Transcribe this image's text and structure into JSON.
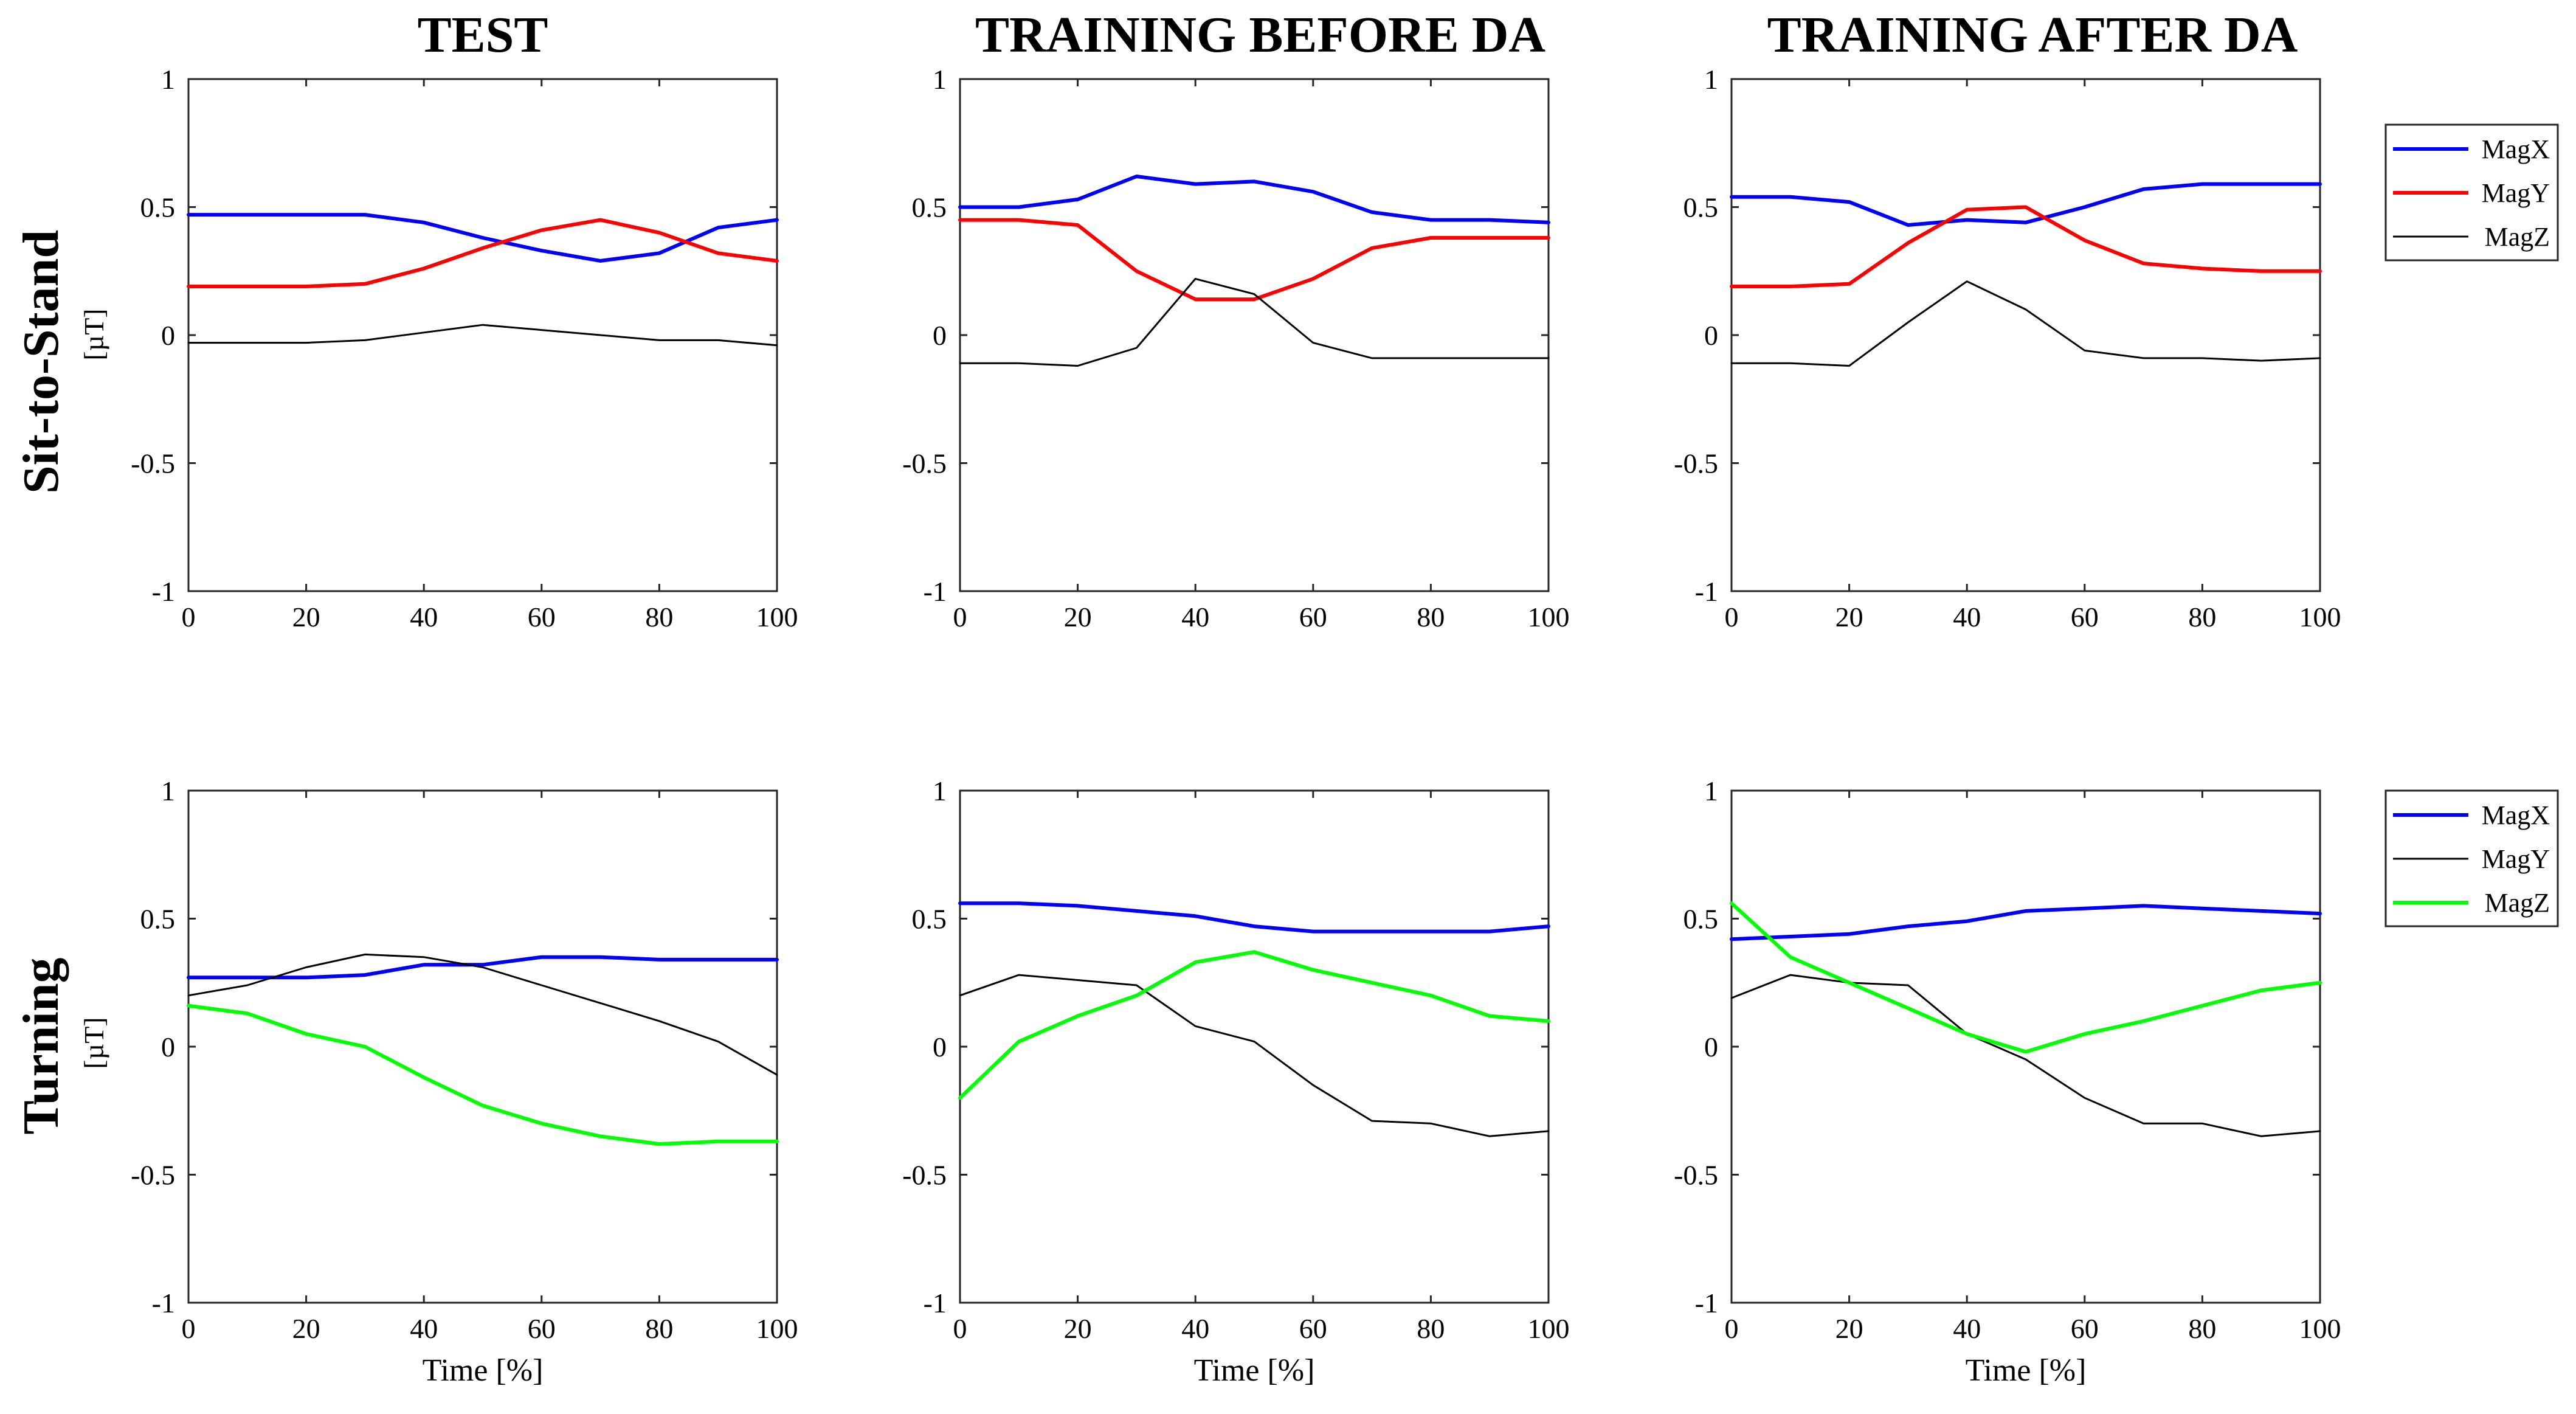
{
  "figure": {
    "column_titles": [
      "TEST",
      "TRAINING BEFORE DA",
      "TRAINING AFTER DA"
    ],
    "row_titles": [
      "Sit-to-Stand",
      "Turning"
    ],
    "unit_label": "[µT]",
    "xlabel": "Time [%]"
  },
  "colors": {
    "blue": "#0000FF",
    "red": "#FF0000",
    "black": "#000000",
    "green": "#00FF00"
  },
  "legends": [
    {
      "entries": [
        {
          "label": "MagX",
          "color": "#0000FF"
        },
        {
          "label": "MagY",
          "color": "#FF0000"
        },
        {
          "label": "MagZ",
          "color": "#000000"
        }
      ]
    },
    {
      "entries": [
        {
          "label": "MagX",
          "color": "#0000FF"
        },
        {
          "label": "MagY",
          "color": "#000000"
        },
        {
          "label": "MagZ",
          "color": "#00FF00"
        }
      ]
    }
  ],
  "chart_data": [
    {
      "type": "line",
      "row": 0,
      "col": 0,
      "x": [
        0,
        10,
        20,
        30,
        40,
        50,
        60,
        70,
        80,
        90,
        100
      ],
      "xlim": [
        0,
        100
      ],
      "ylim": [
        -1,
        1
      ],
      "xticks": [
        "0",
        "20",
        "40",
        "60",
        "80",
        "100"
      ],
      "yticks": [
        "-1",
        "-0.5",
        "0",
        "0.5",
        "1"
      ],
      "series": [
        {
          "name": "MagX",
          "color": "#0000FF",
          "values": [
            0.47,
            0.47,
            0.47,
            0.47,
            0.44,
            0.38,
            0.33,
            0.29,
            0.32,
            0.42,
            0.45
          ]
        },
        {
          "name": "MagY",
          "color": "#FF0000",
          "values": [
            0.19,
            0.19,
            0.19,
            0.2,
            0.26,
            0.34,
            0.41,
            0.45,
            0.4,
            0.32,
            0.29
          ]
        },
        {
          "name": "MagZ",
          "color": "#000000",
          "values": [
            -0.03,
            -0.03,
            -0.03,
            -0.02,
            0.01,
            0.04,
            0.02,
            0.0,
            -0.02,
            -0.02,
            -0.04
          ]
        }
      ]
    },
    {
      "type": "line",
      "row": 0,
      "col": 1,
      "x": [
        0,
        10,
        20,
        30,
        40,
        50,
        60,
        70,
        80,
        90,
        100
      ],
      "xlim": [
        0,
        100
      ],
      "ylim": [
        -1,
        1
      ],
      "xticks": [
        "0",
        "20",
        "40",
        "60",
        "80",
        "100"
      ],
      "yticks": [
        "-1",
        "-0.5",
        "0",
        "0.5",
        "1"
      ],
      "series": [
        {
          "name": "MagX",
          "color": "#0000FF",
          "values": [
            0.5,
            0.5,
            0.53,
            0.62,
            0.59,
            0.6,
            0.56,
            0.48,
            0.45,
            0.45,
            0.44
          ]
        },
        {
          "name": "MagY",
          "color": "#FF0000",
          "values": [
            0.45,
            0.45,
            0.43,
            0.25,
            0.14,
            0.14,
            0.22,
            0.34,
            0.38,
            0.38,
            0.38
          ]
        },
        {
          "name": "MagZ",
          "color": "#000000",
          "values": [
            -0.11,
            -0.11,
            -0.12,
            -0.05,
            0.22,
            0.16,
            -0.03,
            -0.09,
            -0.09,
            -0.09,
            -0.09
          ]
        }
      ]
    },
    {
      "type": "line",
      "row": 0,
      "col": 2,
      "x": [
        0,
        10,
        20,
        30,
        40,
        50,
        60,
        70,
        80,
        90,
        100
      ],
      "xlim": [
        0,
        100
      ],
      "ylim": [
        -1,
        1
      ],
      "xticks": [
        "0",
        "20",
        "40",
        "60",
        "80",
        "100"
      ],
      "yticks": [
        "-1",
        "-0.5",
        "0",
        "0.5",
        "1"
      ],
      "series": [
        {
          "name": "MagX",
          "color": "#0000FF",
          "values": [
            0.54,
            0.54,
            0.52,
            0.43,
            0.45,
            0.44,
            0.5,
            0.57,
            0.59,
            0.59,
            0.59
          ]
        },
        {
          "name": "MagY",
          "color": "#FF0000",
          "values": [
            0.19,
            0.19,
            0.2,
            0.36,
            0.49,
            0.5,
            0.37,
            0.28,
            0.26,
            0.25,
            0.25
          ]
        },
        {
          "name": "MagZ",
          "color": "#000000",
          "values": [
            -0.11,
            -0.11,
            -0.12,
            0.05,
            0.21,
            0.1,
            -0.06,
            -0.09,
            -0.09,
            -0.1,
            -0.09
          ]
        }
      ]
    },
    {
      "type": "line",
      "row": 1,
      "col": 0,
      "x": [
        0,
        10,
        20,
        30,
        40,
        50,
        60,
        70,
        80,
        90,
        100
      ],
      "xlim": [
        0,
        100
      ],
      "ylim": [
        -1,
        1
      ],
      "xticks": [
        "0",
        "20",
        "40",
        "60",
        "80",
        "100"
      ],
      "yticks": [
        "-1",
        "-0.5",
        "0",
        "0.5",
        "1"
      ],
      "xlabel": "Time [%]",
      "series": [
        {
          "name": "MagX",
          "color": "#0000FF",
          "values": [
            0.27,
            0.27,
            0.27,
            0.28,
            0.32,
            0.32,
            0.35,
            0.35,
            0.34,
            0.34,
            0.34
          ]
        },
        {
          "name": "MagY",
          "color": "#000000",
          "values": [
            0.2,
            0.24,
            0.31,
            0.36,
            0.35,
            0.31,
            0.24,
            0.17,
            0.1,
            0.02,
            -0.11
          ]
        },
        {
          "name": "MagZ",
          "color": "#00FF00",
          "values": [
            0.16,
            0.13,
            0.05,
            0.0,
            -0.12,
            -0.23,
            -0.3,
            -0.35,
            -0.38,
            -0.37,
            -0.37
          ]
        }
      ]
    },
    {
      "type": "line",
      "row": 1,
      "col": 1,
      "x": [
        0,
        10,
        20,
        30,
        40,
        50,
        60,
        70,
        80,
        90,
        100
      ],
      "xlim": [
        0,
        100
      ],
      "ylim": [
        -1,
        1
      ],
      "xticks": [
        "0",
        "20",
        "40",
        "60",
        "80",
        "100"
      ],
      "yticks": [
        "-1",
        "-0.5",
        "0",
        "0.5",
        "1"
      ],
      "xlabel": "Time [%]",
      "series": [
        {
          "name": "MagX",
          "color": "#0000FF",
          "values": [
            0.56,
            0.56,
            0.55,
            0.53,
            0.51,
            0.47,
            0.45,
            0.45,
            0.45,
            0.45,
            0.47
          ]
        },
        {
          "name": "MagY",
          "color": "#000000",
          "values": [
            0.2,
            0.28,
            0.26,
            0.24,
            0.08,
            0.02,
            -0.15,
            -0.29,
            -0.3,
            -0.35,
            -0.33
          ]
        },
        {
          "name": "MagZ",
          "color": "#00FF00",
          "values": [
            -0.2,
            0.02,
            0.12,
            0.2,
            0.33,
            0.37,
            0.3,
            0.25,
            0.2,
            0.12,
            0.1
          ]
        }
      ]
    },
    {
      "type": "line",
      "row": 1,
      "col": 2,
      "x": [
        0,
        10,
        20,
        30,
        40,
        50,
        60,
        70,
        80,
        90,
        100
      ],
      "xlim": [
        0,
        100
      ],
      "ylim": [
        -1,
        1
      ],
      "xticks": [
        "0",
        "20",
        "40",
        "60",
        "80",
        "100"
      ],
      "yticks": [
        "-1",
        "-0.5",
        "0",
        "0.5",
        "1"
      ],
      "xlabel": "Time [%]",
      "series": [
        {
          "name": "MagX",
          "color": "#0000FF",
          "values": [
            0.42,
            0.43,
            0.44,
            0.47,
            0.49,
            0.53,
            0.54,
            0.55,
            0.54,
            0.53,
            0.52
          ]
        },
        {
          "name": "MagY",
          "color": "#000000",
          "values": [
            0.19,
            0.28,
            0.25,
            0.24,
            0.05,
            -0.05,
            -0.2,
            -0.3,
            -0.3,
            -0.35,
            -0.33
          ]
        },
        {
          "name": "MagZ",
          "color": "#00FF00",
          "values": [
            0.56,
            0.35,
            0.25,
            0.15,
            0.05,
            -0.02,
            0.05,
            0.1,
            0.16,
            0.22,
            0.25
          ]
        }
      ]
    }
  ]
}
